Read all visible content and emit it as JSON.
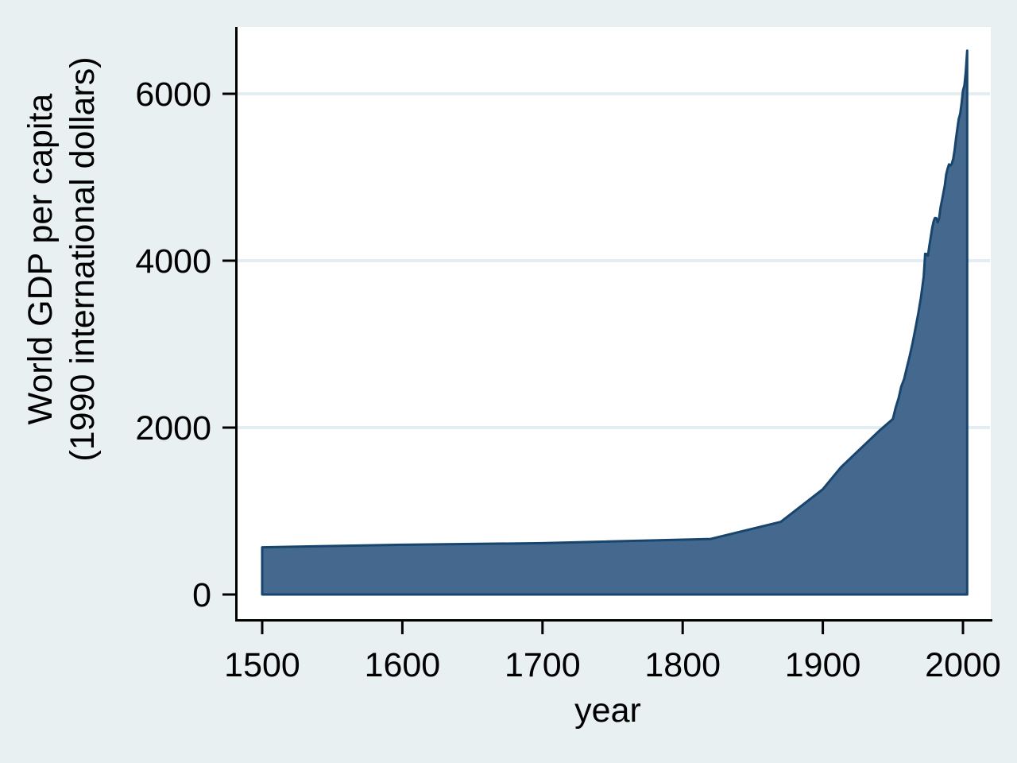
{
  "figure": {
    "background_color": "#e9f0f2",
    "plot_background": "#ffffff",
    "grid_color": "#e4edf1",
    "axis_color": "#000000",
    "area_fill": "#44688e",
    "area_stroke": "#17456d"
  },
  "chart_data": {
    "type": "area",
    "title": "",
    "xlabel": "year",
    "ylabel_lines": [
      "World GDP per capita",
      "(1990 international dollars)"
    ],
    "x_ticks": [
      1500,
      1600,
      1700,
      1800,
      1900,
      2000
    ],
    "x_tick_labels": [
      "1500",
      "1600",
      "1700",
      "1800",
      "1900",
      "2000"
    ],
    "y_ticks": [
      0,
      2000,
      4000,
      6000
    ],
    "y_tick_labels": [
      "0",
      "2000",
      "4000",
      "6000"
    ],
    "xlim": [
      1482,
      2020
    ],
    "ylim": [
      0,
      6800
    ],
    "grid": true,
    "legend_position": "none",
    "series": [
      {
        "name": "World GDP per capita (1990 international dollars)",
        "x": [
          1500,
          1600,
          1700,
          1820,
          1870,
          1900,
          1913,
          1940,
          1950,
          1952,
          1954,
          1956,
          1958,
          1960,
          1962,
          1964,
          1966,
          1968,
          1970,
          1972,
          1973,
          1974,
          1975,
          1976,
          1977,
          1978,
          1979,
          1980,
          1981,
          1982,
          1983,
          1984,
          1985,
          1986,
          1987,
          1988,
          1989,
          1990,
          1991,
          1992,
          1993,
          1994,
          1995,
          1996,
          1997,
          1998,
          1999,
          2000,
          2001,
          2002,
          2003
        ],
        "y": [
          566,
          596,
          615,
          666,
          870,
          1261,
          1526,
          1958,
          2104,
          2240,
          2350,
          2495,
          2580,
          2720,
          2860,
          3010,
          3180,
          3360,
          3560,
          3810,
          4083,
          4080,
          4060,
          4180,
          4280,
          4390,
          4470,
          4512,
          4510,
          4460,
          4510,
          4640,
          4720,
          4810,
          4900,
          5030,
          5100,
          5154,
          5140,
          5160,
          5220,
          5320,
          5462,
          5580,
          5700,
          5760,
          5880,
          6038,
          6100,
          6260,
          6516
        ]
      }
    ]
  }
}
